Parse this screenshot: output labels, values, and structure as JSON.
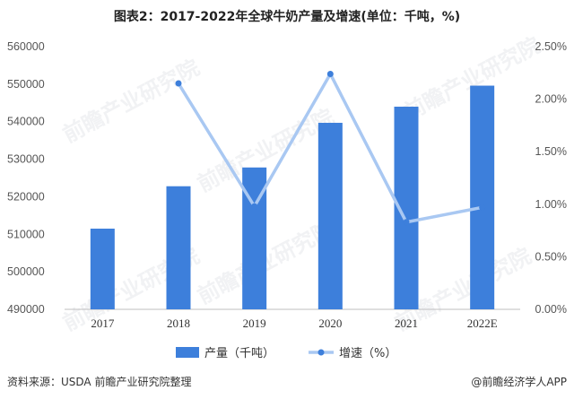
{
  "title": "图表2：2017-2022年全球牛奶产量及增速(单位：千吨，%)",
  "footer": {
    "source": "资料来源：USDA 前瞻产业研究院整理",
    "brand": "@前瞻经济学人APP"
  },
  "watermark": "前瞻产业研究院",
  "colors": {
    "bar": "#3d7fdb",
    "line": "#a9c8f2",
    "marker": "#3d7fdb"
  },
  "chart_data": {
    "type": "bar",
    "categories": [
      "2017",
      "2018",
      "2019",
      "2020",
      "2021",
      "2022E"
    ],
    "series": [
      {
        "name": "产量（千吨）",
        "type": "bar",
        "axis": "left",
        "values": [
          511500,
          522800,
          527800,
          539700,
          544000,
          549600
        ]
      },
      {
        "name": "增速（%）",
        "type": "line",
        "axis": "right",
        "values": [
          null,
          2.15,
          0.98,
          2.24,
          0.83,
          0.97
        ]
      }
    ],
    "ylim_left": [
      490000,
      560000
    ],
    "yticks_left": [
      "490000",
      "500000",
      "510000",
      "520000",
      "530000",
      "540000",
      "550000",
      "560000"
    ],
    "ylim_right": [
      0,
      2.5
    ],
    "yticks_right": [
      "0.00%",
      "0.50%",
      "1.00%",
      "1.50%",
      "2.00%",
      "2.50%"
    ],
    "grid": false,
    "legend": "bottom-center"
  }
}
